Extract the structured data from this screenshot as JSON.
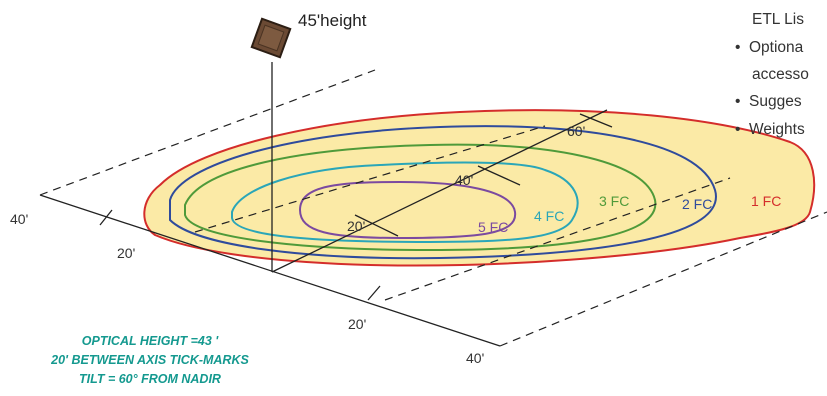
{
  "fixture": {
    "height_label": "45'height"
  },
  "side_text": {
    "lines": [
      "ETL Lis",
      "Optiona",
      "accesso",
      "Sugges",
      "Weights"
    ]
  },
  "contours": [
    {
      "label": "1 FC",
      "color": "#d42d2b"
    },
    {
      "label": "2 FC",
      "color": "#2f4b9c"
    },
    {
      "label": "3 FC",
      "color": "#4f9a3a"
    },
    {
      "label": "4 FC",
      "color": "#2aa6b8"
    },
    {
      "label": "5 FC",
      "color": "#7b4aa0"
    }
  ],
  "axis_ticks": {
    "left_40": "40'",
    "left_20": "20'",
    "center_20": "20'",
    "center_40": "40'",
    "center_60": "60'",
    "bottom_20": "20'",
    "bottom_40": "40'"
  },
  "caption": {
    "line1": "OPTICAL HEIGHT =43 '",
    "line2": "20' BETWEEN AXIS TICK-MARKS",
    "line3": "TILT = 60° FROM NADIR",
    "color": "#14998f"
  },
  "fill_color": "#fbeaa6"
}
